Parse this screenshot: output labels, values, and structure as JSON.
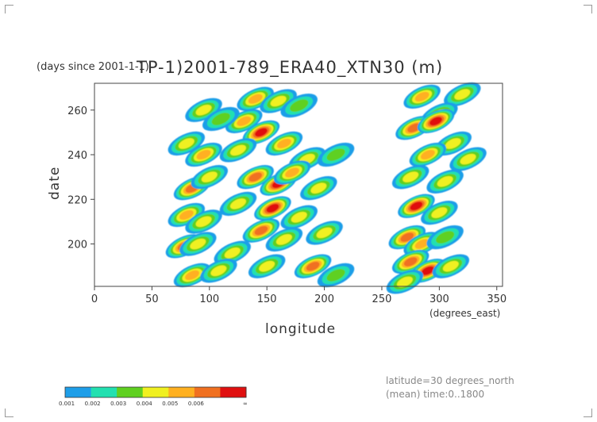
{
  "chart_data": {
    "type": "heatmap",
    "title": "TP-1)2001-789_ERA40_XTN30 (m)",
    "subtitle": "(days since 2001-1-1)",
    "xlabel": "longitude",
    "ylabel": "date",
    "x_unit": "(degrees_east)",
    "xlim": [
      0,
      355
    ],
    "ylim": [
      181,
      272
    ],
    "x_ticks": [
      "0",
      "50",
      "100",
      "150",
      "200",
      "250",
      "300",
      "350"
    ],
    "y_ticks": [
      "200",
      "220",
      "240",
      "260"
    ],
    "grid": false,
    "legend": {
      "placement": "bottom-left",
      "levels": [
        "0.001",
        "0.002",
        "0.003",
        "0.004",
        "0.005",
        "0.006",
        "∞"
      ],
      "colors": [
        "#1e9ee8",
        "#22e0b0",
        "#5fd020",
        "#f0f020",
        "#ffb020",
        "#f07020",
        "#e01010"
      ]
    },
    "notes": [
      "latitude=30 degrees_north",
      "(mean) time:0..1800"
    ],
    "blobs": [
      {
        "x": 140,
        "y": 265,
        "level": 4
      },
      {
        "x": 160,
        "y": 264,
        "level": 3
      },
      {
        "x": 178,
        "y": 262,
        "level": 2
      },
      {
        "x": 130,
        "y": 255,
        "level": 4
      },
      {
        "x": 145,
        "y": 250,
        "level": 6
      },
      {
        "x": 125,
        "y": 242,
        "level": 3
      },
      {
        "x": 165,
        "y": 245,
        "level": 4
      },
      {
        "x": 185,
        "y": 238,
        "level": 3
      },
      {
        "x": 210,
        "y": 240,
        "level": 2
      },
      {
        "x": 140,
        "y": 230,
        "level": 5
      },
      {
        "x": 160,
        "y": 227,
        "level": 6
      },
      {
        "x": 172,
        "y": 232,
        "level": 4
      },
      {
        "x": 195,
        "y": 225,
        "level": 3
      },
      {
        "x": 125,
        "y": 218,
        "level": 3
      },
      {
        "x": 155,
        "y": 216,
        "level": 6
      },
      {
        "x": 178,
        "y": 212,
        "level": 3
      },
      {
        "x": 145,
        "y": 206,
        "level": 5
      },
      {
        "x": 165,
        "y": 202,
        "level": 3
      },
      {
        "x": 200,
        "y": 205,
        "level": 3
      },
      {
        "x": 120,
        "y": 196,
        "level": 3
      },
      {
        "x": 150,
        "y": 190,
        "level": 3
      },
      {
        "x": 190,
        "y": 190,
        "level": 5
      },
      {
        "x": 210,
        "y": 186,
        "level": 2
      },
      {
        "x": 95,
        "y": 260,
        "level": 3
      },
      {
        "x": 80,
        "y": 245,
        "level": 3
      },
      {
        "x": 95,
        "y": 240,
        "level": 4
      },
      {
        "x": 85,
        "y": 225,
        "level": 5
      },
      {
        "x": 100,
        "y": 230,
        "level": 3
      },
      {
        "x": 80,
        "y": 213,
        "level": 4
      },
      {
        "x": 95,
        "y": 210,
        "level": 3
      },
      {
        "x": 78,
        "y": 199,
        "level": 5
      },
      {
        "x": 90,
        "y": 200,
        "level": 3
      },
      {
        "x": 85,
        "y": 186,
        "level": 4
      },
      {
        "x": 108,
        "y": 188,
        "level": 3
      },
      {
        "x": 110,
        "y": 256,
        "level": 2
      },
      {
        "x": 285,
        "y": 266,
        "level": 4
      },
      {
        "x": 320,
        "y": 267,
        "level": 3
      },
      {
        "x": 300,
        "y": 258,
        "level": 3
      },
      {
        "x": 278,
        "y": 252,
        "level": 5
      },
      {
        "x": 297,
        "y": 255,
        "level": 6
      },
      {
        "x": 312,
        "y": 245,
        "level": 3
      },
      {
        "x": 290,
        "y": 240,
        "level": 4
      },
      {
        "x": 325,
        "y": 238,
        "level": 3
      },
      {
        "x": 275,
        "y": 230,
        "level": 3
      },
      {
        "x": 305,
        "y": 228,
        "level": 3
      },
      {
        "x": 280,
        "y": 217,
        "level": 6
      },
      {
        "x": 300,
        "y": 214,
        "level": 3
      },
      {
        "x": 272,
        "y": 203,
        "level": 5
      },
      {
        "x": 285,
        "y": 200,
        "level": 4
      },
      {
        "x": 275,
        "y": 192,
        "level": 5
      },
      {
        "x": 290,
        "y": 188,
        "level": 6
      },
      {
        "x": 310,
        "y": 190,
        "level": 3
      },
      {
        "x": 270,
        "y": 183,
        "level": 3
      },
      {
        "x": 305,
        "y": 203,
        "level": 2
      }
    ]
  }
}
